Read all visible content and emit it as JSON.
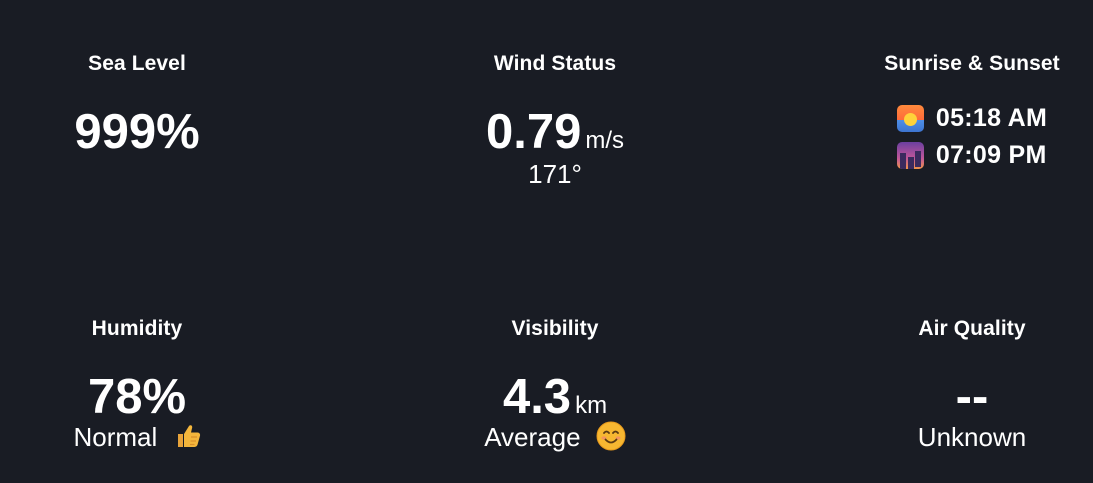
{
  "cards": {
    "sea_level": {
      "title": "Sea Level",
      "value": "999%"
    },
    "wind_status": {
      "title": "Wind Status",
      "value": "0.79",
      "unit": "m/s",
      "direction": "171°"
    },
    "sunrise_sunset": {
      "title": "Sunrise & Sunset",
      "sunrise": "05:18 AM",
      "sunset": "07:09 PM",
      "sunrise_icon": "sunrise-icon",
      "sunset_icon": "sunset-city-icon"
    },
    "humidity": {
      "title": "Humidity",
      "value": "78%",
      "status": "Normal",
      "status_icon": "thumbs-up-icon"
    },
    "visibility": {
      "title": "Visibility",
      "value": "4.3",
      "unit": "km",
      "status": "Average",
      "status_icon": "smiling-face-icon"
    },
    "air_quality": {
      "title": "Air Quality",
      "value": "--",
      "status": "Unknown"
    }
  },
  "colors": {
    "background": "#191c24",
    "text": "#ffffff"
  }
}
